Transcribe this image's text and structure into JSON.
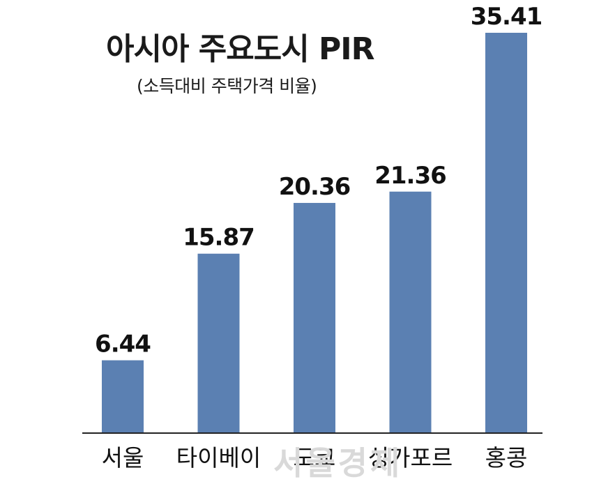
{
  "chart_data": {
    "type": "bar",
    "title": "아시아 주요도시 PIR",
    "subtitle": "(소득대비 주택가격 비율)",
    "categories": [
      "서울",
      "타이베이",
      "도쿄",
      "싱가포르",
      "홍콩"
    ],
    "values": [
      6.44,
      15.87,
      20.36,
      21.36,
      35.41
    ],
    "value_labels": [
      "6.44",
      "15.87",
      "20.36",
      "21.36",
      "35.41"
    ],
    "ylim": [
      0,
      35.41
    ],
    "bar_color": "#5b80b2",
    "axis_color": "#222222",
    "grid": false,
    "legend": "none",
    "watermark": "서울경제"
  }
}
